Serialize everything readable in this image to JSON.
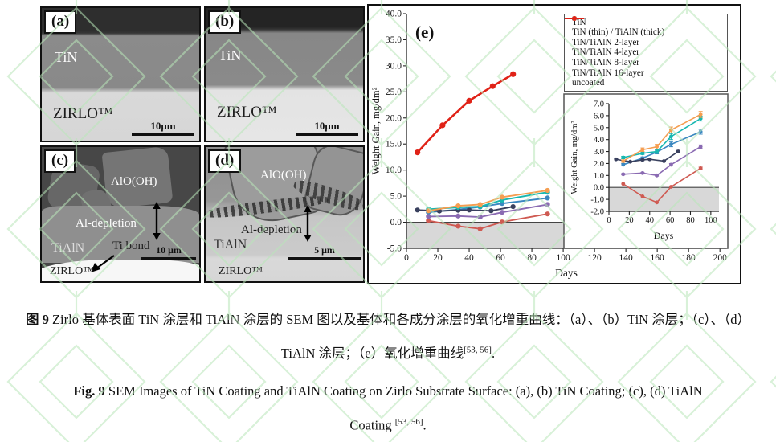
{
  "sem": {
    "panels": [
      {
        "tag": "(a)",
        "layer_label": "TiN",
        "substrate_label": "ZIRLO™",
        "scale_label": "10μm"
      },
      {
        "tag": "(b)",
        "layer_label": "TiN",
        "substrate_label": "ZIRLO™",
        "scale_label": "10μm"
      },
      {
        "tag": "(c)",
        "oxide_label": "AlO(OH)",
        "depletion_label": "Al-depletion",
        "layer_label": "TiAlN",
        "bond_label": "Ti bond",
        "substrate_label": "ZIRLO™",
        "scale_label": "10 μm"
      },
      {
        "tag": "(d)",
        "oxide_label": "AlO(OH)",
        "depletion_label": "Al-depletion",
        "layer_label": "TiAlN",
        "substrate_label": "ZIRLO™",
        "scale_label": "5 μm"
      }
    ]
  },
  "chart_data": {
    "type": "line",
    "panel_tag": "(e)",
    "xlabel": "Days",
    "ylabel": "Weight Gain, mg/dm²",
    "grid": false,
    "legend_position": "top-right",
    "main_axes": {
      "xlim": [
        0,
        204
      ],
      "ylim": [
        -5,
        40
      ],
      "xticks": [
        0,
        20,
        40,
        60,
        80,
        100,
        120,
        140,
        160,
        180,
        200
      ],
      "yticks": [
        -5,
        0,
        5,
        10,
        15,
        20,
        25,
        30,
        35,
        40
      ],
      "y_decimals": 1,
      "shade_below": 0,
      "shade_color": "#d8d8d8"
    },
    "inset_axes": {
      "xlim": [
        0,
        108
      ],
      "ylim": [
        -2,
        7
      ],
      "xticks": [
        0,
        20,
        40,
        60,
        80,
        100
      ],
      "yticks": [
        -2,
        -1,
        0,
        1,
        2,
        3,
        4,
        5,
        6,
        7
      ],
      "y_decimals": 1,
      "shade_below": 0,
      "shade_color": "#d8d8d8",
      "xlabel": "Days",
      "ylabel": "Weight Gain, mg/dm²"
    },
    "series": [
      {
        "name": "TiN",
        "color": "#3a87c0",
        "x": [
          14,
          33,
          47,
          61,
          90
        ],
        "y": [
          1.9,
          2.45,
          2.95,
          3.6,
          4.65
        ],
        "err": [
          0.1,
          0.1,
          0.15,
          0.2,
          0.2
        ]
      },
      {
        "name": "TiN (thin) / TiAlN (thick)",
        "color": "#cf5a52",
        "x": [
          14,
          33,
          47,
          61,
          90
        ],
        "y": [
          0.3,
          -0.75,
          -1.25,
          0.05,
          1.6
        ],
        "err": [
          0,
          0,
          0,
          0,
          0.1
        ]
      },
      {
        "name": "TiN/TiAlN 2-layer",
        "color": "#39405e",
        "x": [
          7,
          21,
          33,
          40,
          54,
          68
        ],
        "y": [
          2.35,
          2.15,
          2.3,
          2.35,
          2.2,
          3.0
        ],
        "err": [
          0.05,
          0.05,
          0.05,
          0.05,
          0.05,
          0.1
        ]
      },
      {
        "name": "TiN/TiAlN 4-layer",
        "color": "#8a6ab2",
        "x": [
          14,
          33,
          47,
          61,
          90
        ],
        "y": [
          1.1,
          1.2,
          1.0,
          1.9,
          3.4
        ],
        "err": [
          0.05,
          0.05,
          0.05,
          0.1,
          0.15
        ]
      },
      {
        "name": "TiN/TiAlN 8-layer",
        "color": "#17b7b0",
        "x": [
          14,
          33,
          47,
          61,
          90
        ],
        "y": [
          2.5,
          2.85,
          3.0,
          4.25,
          5.75
        ],
        "err": [
          0.1,
          0.1,
          0.15,
          0.25,
          0.2
        ]
      },
      {
        "name": "TiN/TiAlN 16-layer",
        "color": "#f59e51",
        "x": [
          14,
          33,
          47,
          61,
          90
        ],
        "y": [
          2.2,
          3.15,
          3.4,
          4.8,
          6.1
        ],
        "err": [
          0.1,
          0.15,
          0.2,
          0.25,
          0.25
        ]
      },
      {
        "name": "uncoated",
        "color": "#e02217",
        "x": [
          7,
          23,
          40,
          55,
          68
        ],
        "y": [
          13.4,
          18.6,
          23.3,
          26.1,
          28.4
        ],
        "main_only": true,
        "linewidth": 2.6
      }
    ]
  },
  "caption": {
    "zh_prefix": "图 9",
    "zh_line1": " Zirlo 基体表面 TiN 涂层和 TiAlN 涂层的 SEM 图以及基体和各成分涂层的氧化增重曲线：（a）、（b）TiN 涂层；（c）、（d）",
    "zh_line2_main": "TiAlN 涂层；（e）氧化增重曲线",
    "zh_sup": "[53, 56]",
    "zh_end": ".",
    "en_prefix": "Fig. 9",
    "en_line1": " SEM Images of TiN Coating and TiAlN Coating on Zirlo Substrate Surface: (a), (b) TiN Coating; (c), (d) TiAlN",
    "en_line2_main": "Coating ",
    "en_sup": "[53, 56]",
    "en_end": "."
  }
}
